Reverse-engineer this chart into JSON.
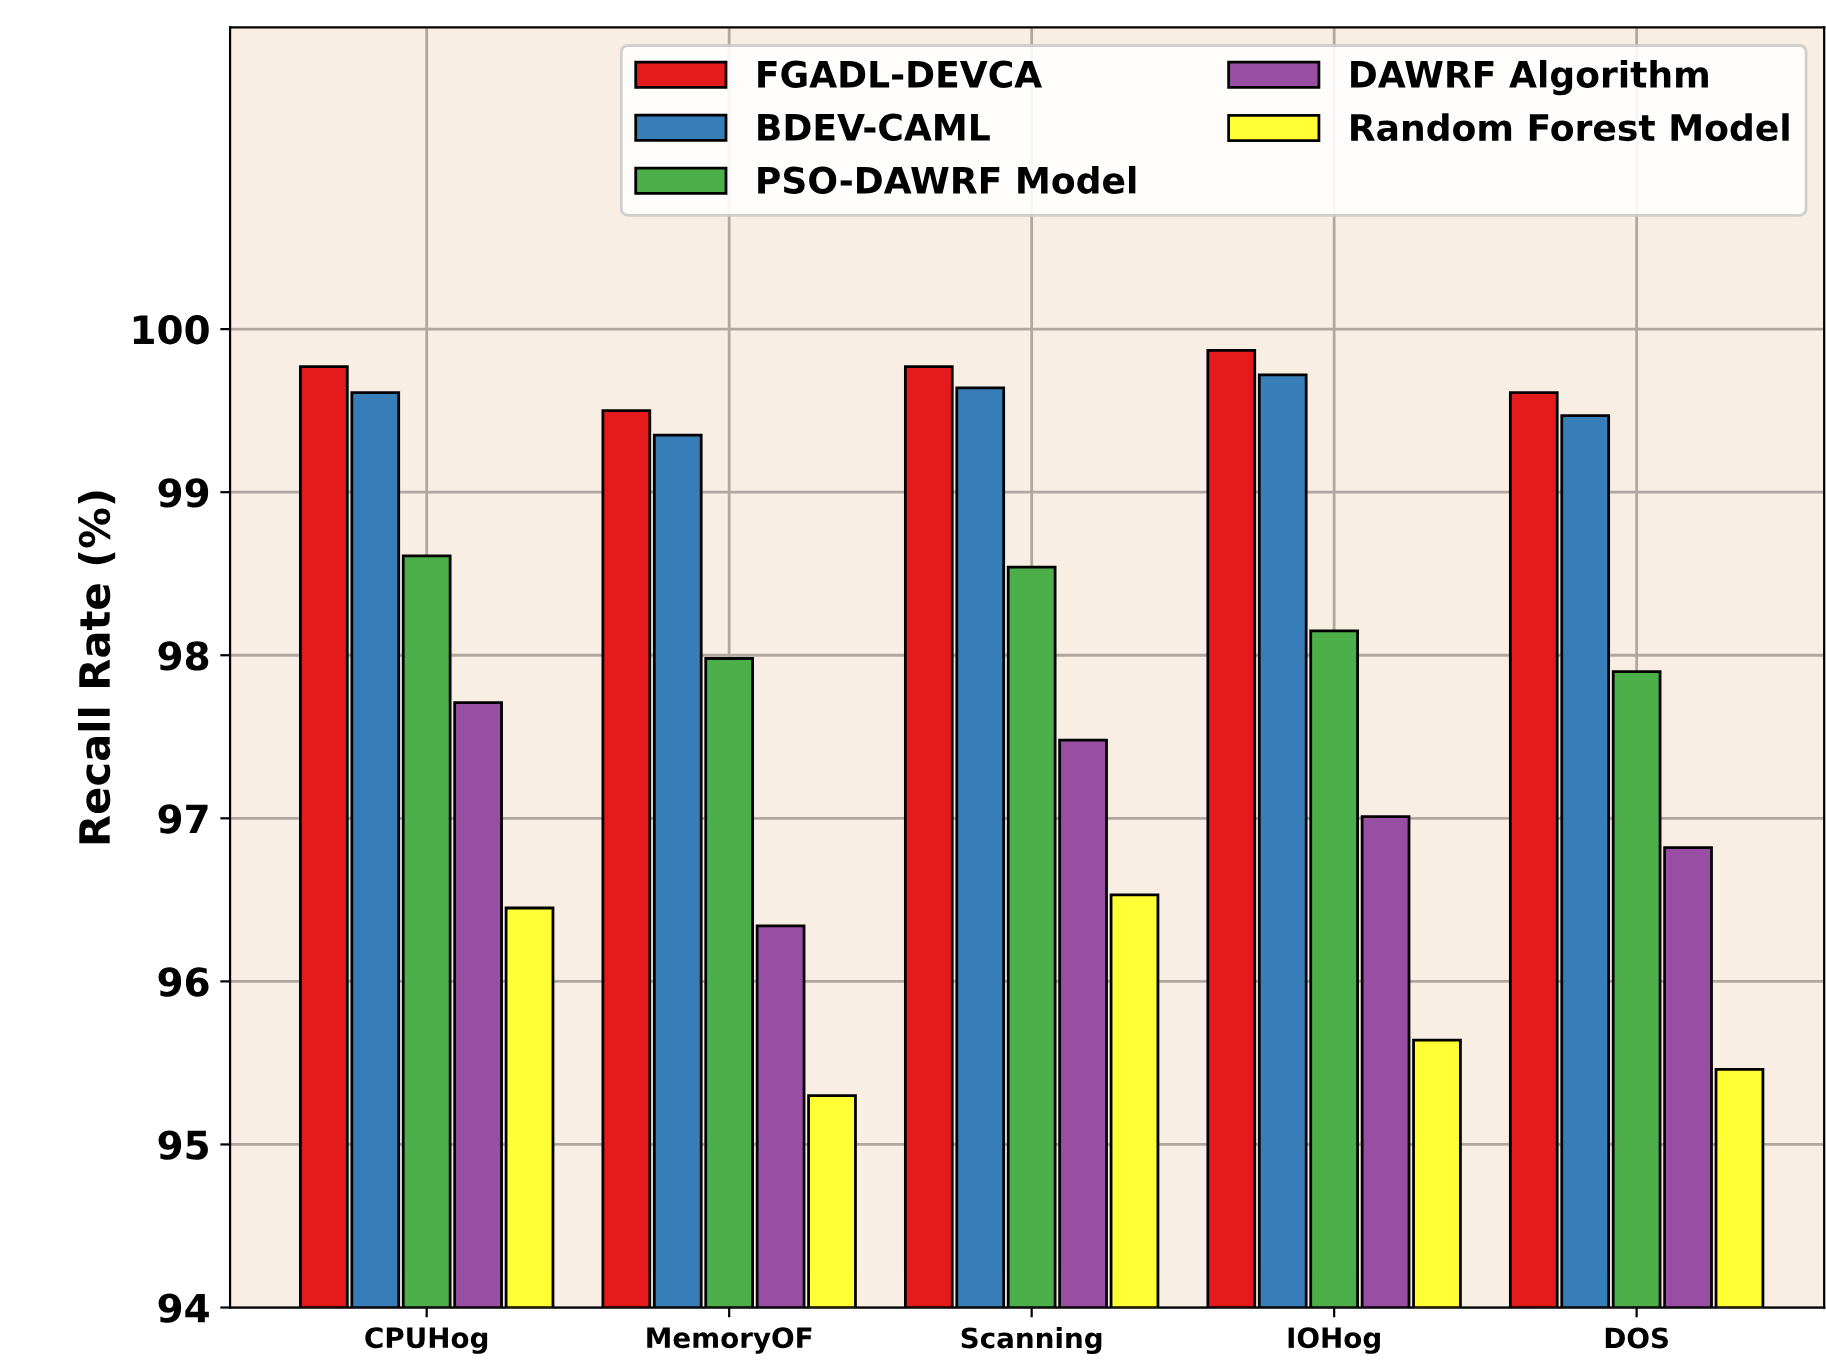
{
  "chart_data": {
    "type": "bar",
    "ylabel": "Recall Rate (%)",
    "categories": [
      "CPUHog",
      "MemoryOF",
      "Scanning",
      "IOHog",
      "DOS"
    ],
    "series": [
      {
        "name": "FGADL-DEVCA",
        "color": "#e41a1c",
        "values": [
          99.77,
          99.5,
          99.77,
          99.87,
          99.61
        ]
      },
      {
        "name": "BDEV-CAML",
        "color": "#377eb8",
        "values": [
          99.61,
          99.35,
          99.64,
          99.72,
          99.47
        ]
      },
      {
        "name": "PSO-DAWRF Model",
        "color": "#4daf4a",
        "values": [
          98.61,
          97.98,
          98.54,
          98.15,
          97.9
        ]
      },
      {
        "name": "DAWRF Algorithm",
        "color": "#984ea3",
        "values": [
          97.71,
          96.34,
          97.48,
          97.01,
          96.82
        ]
      },
      {
        "name": "Random Forest Model",
        "color": "#ffff33",
        "values": [
          96.45,
          95.3,
          96.53,
          95.64,
          95.46
        ]
      }
    ],
    "ylim": [
      94,
      101.85
    ],
    "yticks": [
      94,
      95,
      96,
      97,
      98,
      99,
      100
    ],
    "grid": true,
    "legend": "top right"
  }
}
